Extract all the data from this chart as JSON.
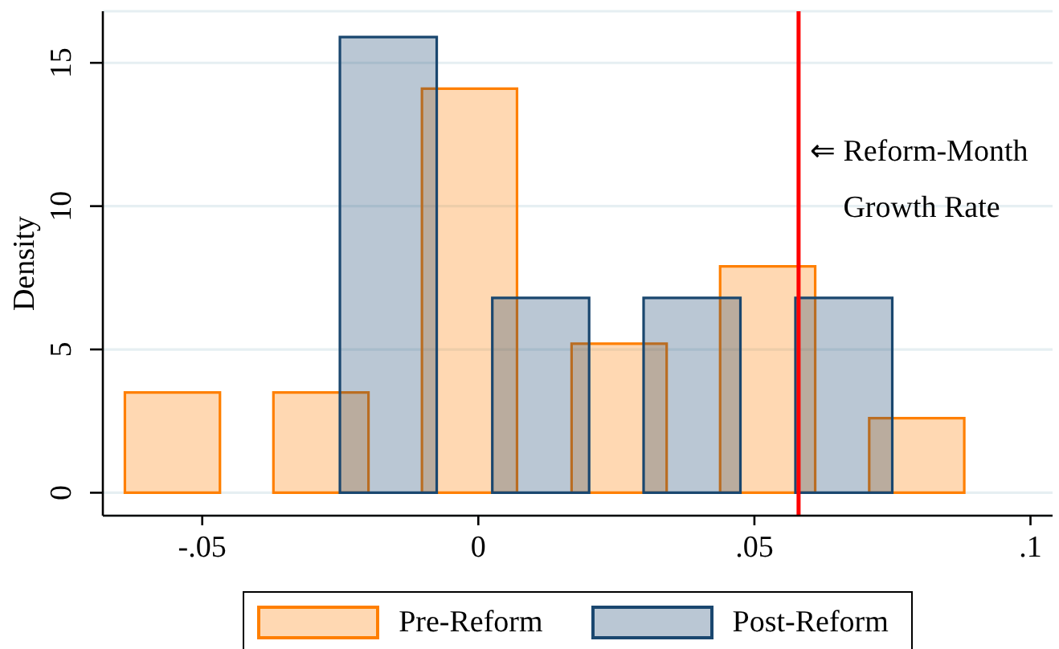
{
  "chart_data": {
    "type": "bar",
    "ylabel": "Density",
    "series": [
      {
        "name": "Pre-Reform",
        "color": "#ff7f00",
        "x": [
          -0.0554,
          -0.0285,
          -0.0016,
          0.0255,
          0.0524,
          0.0794
        ],
        "values": [
          3.5,
          3.5,
          14.1,
          5.2,
          7.9,
          2.6
        ]
      },
      {
        "name": "Post-Reform",
        "color": "#1a476f",
        "x": [
          -0.0163,
          0.0113,
          0.0387,
          0.0662
        ],
        "values": [
          15.9,
          6.8,
          6.8,
          6.8
        ]
      }
    ],
    "xlim": [
      -0.068,
      0.104
    ],
    "xticks": [
      {
        "value": -0.05,
        "label": "-.05"
      },
      0,
      {
        "value": 0.05,
        "label": ".05"
      },
      {
        "value": 0.1,
        "label": ".1"
      }
    ],
    "ylim": [
      -0.8,
      16.8
    ],
    "yticks": [
      0,
      5,
      10,
      15
    ],
    "grid": "y",
    "legend": "bottom",
    "ref_lines": [
      {
        "axis": "x",
        "value": 0.058,
        "label": "⇐ Reform-Month Growth Rate",
        "color": "#ff0000"
      }
    ]
  }
}
